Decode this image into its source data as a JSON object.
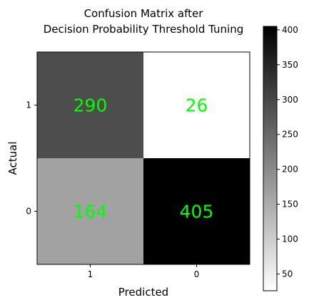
{
  "chart_data": {
    "type": "heatmap",
    "title_line1": "Confusion Matrix after",
    "title_line2": "Decision Probability Threshold Tuning",
    "xlabel": "Predicted",
    "ylabel": "Actual",
    "x_categories": [
      "1",
      "0"
    ],
    "y_categories": [
      "1",
      "0"
    ],
    "cells": [
      {
        "actual": "1",
        "predicted": "1",
        "value": 290
      },
      {
        "actual": "1",
        "predicted": "0",
        "value": 26
      },
      {
        "actual": "0",
        "predicted": "1",
        "value": 164
      },
      {
        "actual": "0",
        "predicted": "0",
        "value": 405
      }
    ],
    "colormap": "gray_r",
    "color_range": [
      26,
      405
    ],
    "value_label_color": "#00ff00",
    "colorbar_ticks": [
      50,
      100,
      150,
      200,
      250,
      300,
      350,
      400
    ]
  }
}
